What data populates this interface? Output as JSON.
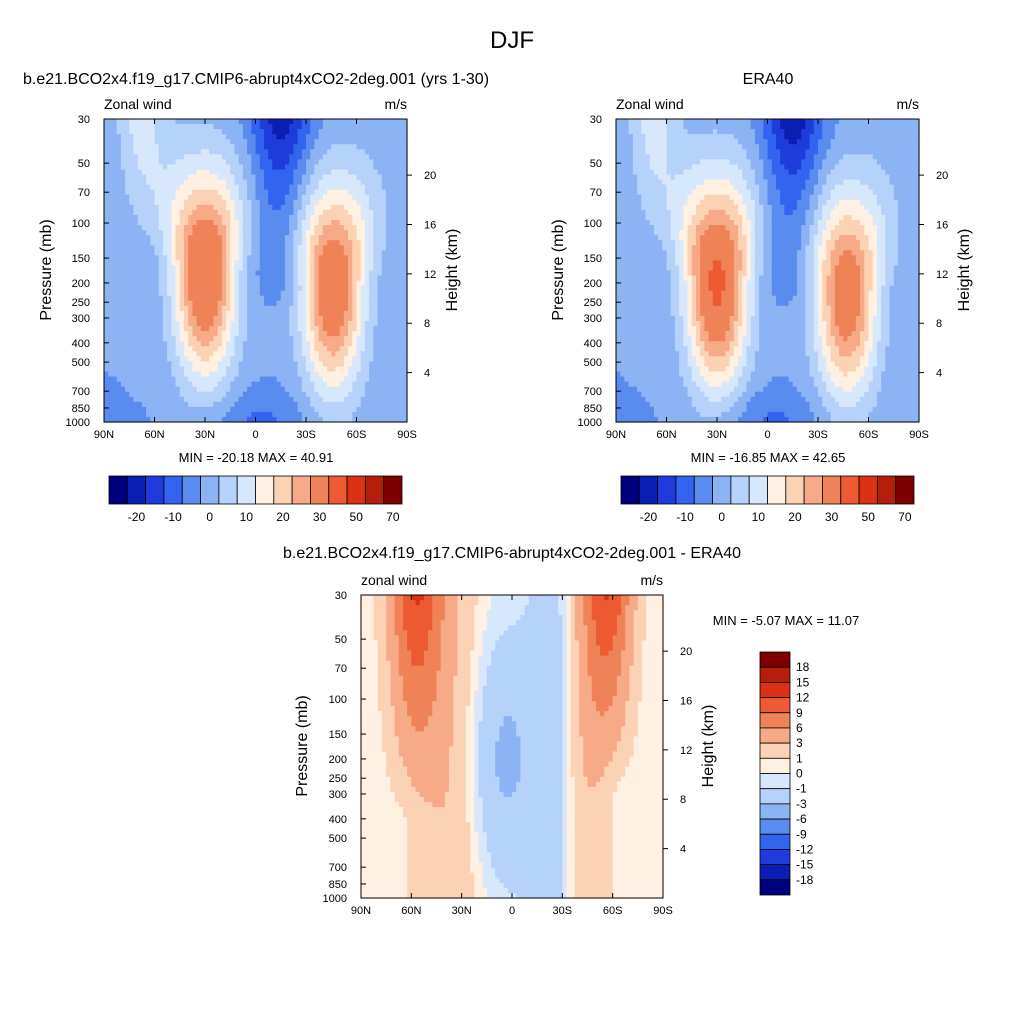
{
  "title": "DJF",
  "colors": {
    "panel_scale": [
      "#00007f",
      "#0a1eb4",
      "#1e3cdc",
      "#3264f0",
      "#5a8cf0",
      "#8cb4f5",
      "#b4d2fa",
      "#d7e8fd",
      "#fff0e1",
      "#fcd2b4",
      "#f7aa87",
      "#f08258",
      "#eb5a32",
      "#dc3214",
      "#b41e0a",
      "#7f0000"
    ],
    "diff_scale": [
      "#00007f",
      "#0a1eb4",
      "#1e3cdc",
      "#3264f0",
      "#5a8cf0",
      "#8cb4f5",
      "#b4d2fa",
      "#d7e8fd",
      "#fff0e1",
      "#fcd2b4",
      "#f7aa87",
      "#f08258",
      "#eb5a32",
      "#dc3214",
      "#b41e0a",
      "#7f0000"
    ]
  },
  "chart_data": [
    {
      "type": "heatmap",
      "subtitle": "b.e21.BCO2x4.f19_g17.CMIP6-abrupt4xCO2-2deg.001 (yrs 1-30)",
      "left_label": "Zonal wind",
      "units": "m/s",
      "ylabel": "Pressure (mb)",
      "y2label": "Height (km)",
      "x_ticks": [
        "90N",
        "60N",
        "30N",
        "0",
        "30S",
        "60S",
        "90S"
      ],
      "y_ticks": [
        "30",
        "50",
        "70",
        "100",
        "150",
        "200",
        "250",
        "300",
        "400",
        "500",
        "700",
        "850",
        "1000"
      ],
      "y2_ticks": [
        "20",
        "16",
        "12",
        "8",
        "4"
      ],
      "stats": "MIN = -20.18  MAX = 40.91",
      "min": -20.18,
      "max": 40.91,
      "colorbar_labels": [
        "-20",
        "-10",
        "0",
        "10",
        "20",
        "30",
        "50",
        "70"
      ],
      "jets": [
        {
          "lat": 30,
          "p": 180,
          "u": 40
        },
        {
          "lat": -46,
          "p": 210,
          "u": 38
        }
      ]
    },
    {
      "type": "heatmap",
      "subtitle": "ERA40",
      "left_label": "zonal wind",
      "units": "m/s",
      "ylabel": "Pressure (mb)",
      "y2label": "Height (km)",
      "x_ticks": [
        "90N",
        "60N",
        "30N",
        "0",
        "30S",
        "60S",
        "90S"
      ],
      "y_ticks": [
        "30",
        "50",
        "70",
        "100",
        "150",
        "200",
        "250",
        "300",
        "400",
        "500",
        "700",
        "850",
        "1000"
      ],
      "y2_ticks": [
        "20",
        "16",
        "12",
        "8",
        "4"
      ],
      "stats": "MIN = -16.85  MAX = 42.65",
      "min": -16.85,
      "max": 42.65,
      "colorbar_labels": [
        "-20",
        "-10",
        "0",
        "10",
        "20",
        "30",
        "50",
        "70"
      ],
      "jets": [
        {
          "lat": 30,
          "p": 200,
          "u": 42
        },
        {
          "lat": -47,
          "p": 230,
          "u": 36
        }
      ]
    },
    {
      "type": "heatmap",
      "subtitle": "b.e21.BCO2x4.f19_g17.CMIP6-abrupt4xCO2-2deg.001 - ERA40",
      "left_label": "zonal wind",
      "units": "m/s",
      "ylabel": "Pressure (mb)",
      "y2label": "Height (km)",
      "x_ticks": [
        "90N",
        "60N",
        "30N",
        "0",
        "30S",
        "60S",
        "90S"
      ],
      "y_ticks": [
        "30",
        "50",
        "70",
        "100",
        "150",
        "200",
        "250",
        "300",
        "400",
        "500",
        "700",
        "850",
        "1000"
      ],
      "y2_ticks": [
        "20",
        "16",
        "12",
        "8",
        "4"
      ],
      "stats": "MIN =  -5.07  MAX =  11.07",
      "min": -5.07,
      "max": 11.07,
      "colorbar_labels": [
        "18",
        "15",
        "12",
        "9",
        "6",
        "3",
        "1",
        "0",
        "-1",
        "-3",
        "-6",
        "-9",
        "-12",
        "-15",
        "-18"
      ]
    }
  ]
}
